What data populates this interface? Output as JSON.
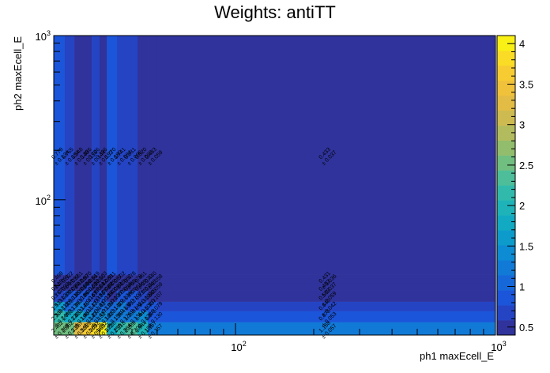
{
  "chart_data": {
    "type": "heatmap",
    "title": "Weights: antiTT",
    "xlabel": "ph1 maxEcell_E",
    "ylabel": "ph2 maxEcell_E",
    "x_scale": "log",
    "y_scale": "log",
    "xlim": [
      20,
      1000
    ],
    "ylim": [
      15,
      1000
    ],
    "x_ticks": [
      {
        "value": 100,
        "base": "10",
        "exp": "2"
      },
      {
        "value": 1000,
        "base": "10",
        "exp": "3"
      }
    ],
    "y_ticks": [
      {
        "value": 100,
        "base": "10",
        "exp": "2"
      },
      {
        "value": 1000,
        "base": "10",
        "exp": "3"
      }
    ],
    "x_edges": [
      20,
      22,
      24,
      26,
      28,
      30,
      32,
      35,
      38,
      42,
      46,
      50,
      1000
    ],
    "y_edges": [
      15,
      18,
      21,
      24,
      28,
      31,
      35,
      1000
    ],
    "z_min": 0.4,
    "z_max": 4.1,
    "colorbar_ticks": [
      "0.5",
      "1",
      "1.5",
      "2",
      "2.5",
      "3",
      "3.5",
      "4"
    ],
    "colorbar_tick_values": [
      0.5,
      1,
      1.5,
      2,
      2.5,
      3,
      3.5,
      4
    ],
    "cells": [
      [
        {
          "v": 2.482,
          "e": 0.265
        },
        {
          "v": 2.552,
          "e": 0.23
        },
        {
          "v": 3.267,
          "e": 0.301
        },
        {
          "v": 3.589,
          "e": 0.303
        },
        {
          "v": 3.862,
          "e": 0.363
        },
        {
          "v": 4.062,
          "e": 0.372
        },
        {
          "v": 1.73,
          "e": 0.25
        },
        {
          "v": 2.218,
          "e": 0.264
        },
        {
          "v": 2.289,
          "e": 0.2
        },
        {
          "v": 1.944,
          "e": 0.186
        },
        {
          "v": 1.157,
          "e": 0.157
        },
        {
          "v": 1.168,
          "e": 0.057
        }
      ],
      [
        {
          "v": 2.239,
          "e": 0.244
        },
        {
          "v": 1.715,
          "e": 0.222
        },
        {
          "v": 1.833,
          "e": 0.19
        },
        {
          "v": 1.464,
          "e": 0.147
        },
        {
          "v": 1.233,
          "e": 0.132
        },
        {
          "v": 1.417,
          "e": 0.161
        },
        {
          "v": 1.313,
          "e": 0.154
        },
        {
          "v": 1.294,
          "e": 0.126
        },
        {
          "v": 1.199,
          "e": 0.136
        },
        {
          "v": 1.444,
          "e": 0.124
        },
        {
          "v": 0.875,
          "e": 0.13
        },
        {
          "v": 0.875,
          "e": 0.053
        }
      ],
      [
        {
          "v": 1.513,
          "e": 0.213
        },
        {
          "v": 1.025,
          "e": 0.134
        },
        {
          "v": 1.213,
          "e": 0.141
        },
        {
          "v": 1.104,
          "e": 0.147
        },
        {
          "v": 1.123,
          "e": 0.142
        },
        {
          "v": 1.017,
          "e": 0.115
        },
        {
          "v": 1.047,
          "e": 0.142
        },
        {
          "v": 1.206,
          "e": 0.138
        },
        {
          "v": 0.912,
          "e": 0.142
        },
        {
          "v": 0.943,
          "e": 0.102
        },
        {
          "v": 0.787,
          "e": 0.079
        },
        {
          "v": 0.64,
          "e": 0.042
        }
      ],
      [
        {
          "v": 0.767,
          "e": 0.123
        },
        {
          "v": 0.785,
          "e": 0.111
        },
        {
          "v": 0.856,
          "e": 0.109
        },
        {
          "v": 0.864,
          "e": 0.107
        },
        {
          "v": 0.697,
          "e": 0.12
        },
        {
          "v": 0.821,
          "e": 0.128
        },
        {
          "v": 0.142,
          "e": 0.108
        },
        {
          "v": 0.776,
          "e": 0.134
        },
        {
          "v": 0.787,
          "e": 0.107
        },
        {
          "v": 0.731,
          "e": 0.101
        },
        {
          "v": 0.565,
          "e": 0.107
        },
        {
          "v": 0.503,
          "e": 0.059
        }
      ],
      [
        {
          "v": 0.515,
          "e": 0.093
        },
        {
          "v": 0.534,
          "e": 0.095
        },
        {
          "v": 0.547,
          "e": 0.098
        },
        {
          "v": 0.596,
          "e": 0.102
        },
        {
          "v": 0.536,
          "e": 0.094
        },
        {
          "v": 0.512,
          "e": 0.089
        },
        {
          "v": 0.529,
          "e": 0.089
        },
        {
          "v": 0.515,
          "e": 0.084
        },
        {
          "v": 0.488,
          "e": 0.081
        },
        {
          "v": 0.469,
          "e": 0.071
        },
        {
          "v": 0.445,
          "e": 0.059
        },
        {
          "v": 0.433,
          "e": 0.037
        }
      ],
      [
        {
          "v": 0.498,
          "e": 0.091
        },
        {
          "v": 0.522,
          "e": 0.092
        },
        {
          "v": 0.561,
          "e": 0.099
        },
        {
          "v": 0.57,
          "e": 0.096
        },
        {
          "v": 0.519,
          "e": 0.09
        },
        {
          "v": 0.503,
          "e": 0.088
        },
        {
          "v": 0.511,
          "e": 0.087
        },
        {
          "v": 0.502,
          "e": 0.082
        },
        {
          "v": 0.478,
          "e": 0.079
        },
        {
          "v": 0.461,
          "e": 0.07
        },
        {
          "v": 0.44,
          "e": 0.058
        },
        {
          "v": 0.431,
          "e": 0.036
        }
      ],
      [
        {
          "v": 0.778,
          "e": 0.134
        },
        {
          "v": 0.765,
          "e": 0.154
        },
        {
          "v": 0.548,
          "e": 0.14
        },
        {
          "v": 0.386,
          "e": 0.158
        },
        {
          "v": 0.706,
          "e": 0.144
        },
        {
          "v": 0.396,
          "e": 0.152
        },
        {
          "v": 0.77,
          "e": 0.18
        },
        {
          "v": 0.741,
          "e": 0.084
        },
        {
          "v": 0.631,
          "e": 0.095
        },
        {
          "v": 0.52,
          "e": 0.069
        },
        {
          "v": 0.433,
          "e": 0.059
        },
        {
          "v": 0.433,
          "e": 0.037
        }
      ]
    ]
  }
}
